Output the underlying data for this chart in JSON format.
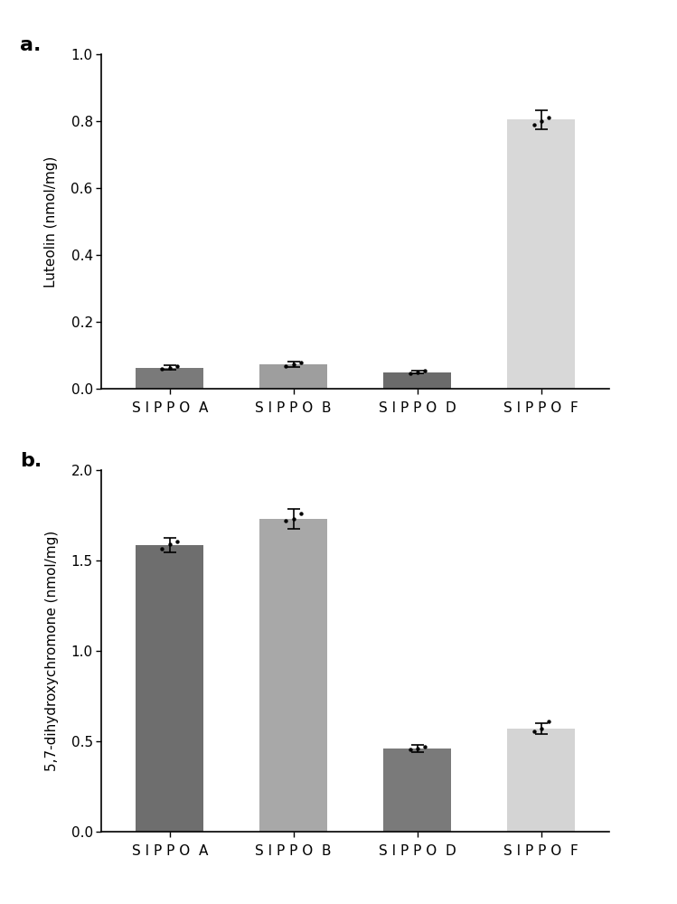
{
  "panel_a": {
    "categories": [
      "SIPPO A",
      "SIPPO B",
      "SIPPO D",
      "SIPPO F"
    ],
    "values": [
      0.063,
      0.073,
      0.05,
      0.805
    ],
    "errors": [
      0.006,
      0.007,
      0.005,
      0.028
    ],
    "scatter_points": [
      [
        0.059,
        0.063,
        0.067
      ],
      [
        0.068,
        0.073,
        0.079
      ],
      [
        0.046,
        0.05,
        0.054
      ],
      [
        0.79,
        0.8,
        0.812
      ]
    ],
    "bar_colors": [
      "#7a7a7a",
      "#9e9e9e",
      "#6b6b6b",
      "#d8d8d8"
    ],
    "ylabel": "Luteolin (nmol/mg)",
    "ylim": [
      0,
      1.0
    ],
    "yticks": [
      0.0,
      0.2,
      0.4,
      0.6,
      0.8,
      1.0
    ],
    "label": "a."
  },
  "panel_b": {
    "categories": [
      "SIPPO A",
      "SIPPO B",
      "SIPPO D",
      "SIPPO F"
    ],
    "values": [
      1.585,
      1.73,
      0.46,
      0.57
    ],
    "errors": [
      0.04,
      0.055,
      0.018,
      0.032
    ],
    "scatter_points": [
      [
        1.565,
        1.59,
        1.605
      ],
      [
        1.718,
        1.73,
        1.758
      ],
      [
        0.453,
        0.46,
        0.468
      ],
      [
        0.555,
        0.572,
        0.608
      ]
    ],
    "bar_colors": [
      "#6e6e6e",
      "#a8a8a8",
      "#7a7a7a",
      "#d4d4d4"
    ],
    "ylabel": "5,7-dihydroxychromone (nmol/mg)",
    "ylim": [
      0,
      2.0
    ],
    "yticks": [
      0.0,
      0.5,
      1.0,
      1.5,
      2.0
    ],
    "label": "b."
  },
  "background_color": "#ffffff",
  "bar_width": 0.55,
  "scatter_color": "#000000",
  "scatter_size": 10,
  "error_color": "#000000",
  "capsize": 5,
  "tick_label_fontsize": 11,
  "axis_label_fontsize": 11,
  "spaced_labels": [
    "S I P P O  A",
    "S I P P O  B",
    "S I P P O  D",
    "S I P P O  F"
  ]
}
